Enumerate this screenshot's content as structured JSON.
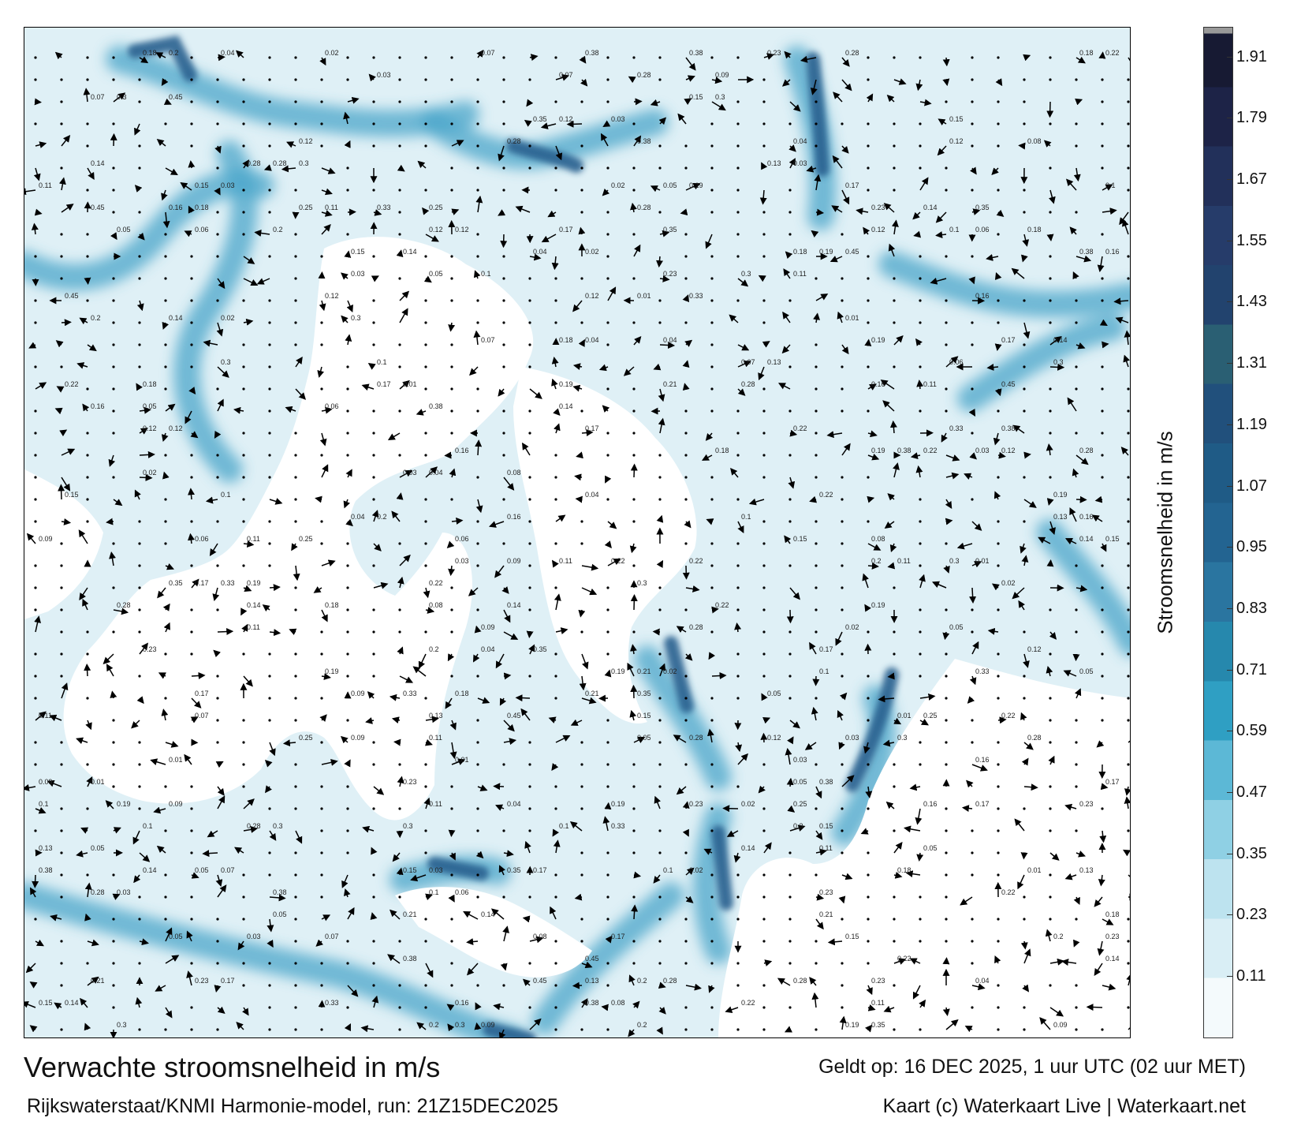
{
  "map": {
    "title": "Verwachte stroomsnelheid in m/s",
    "subtitle": "Rijkswaterstaat/KNMI Harmonie-model, run: 21Z15DEC2025",
    "valid_time": "Geldt op: 16 DEC 2025, 1 uur UTC (02 uur MET)",
    "credit": "Kaart (c) Waterkaart Live | Waterkaart.net",
    "colorbar": {
      "label": "Stroomsnelheid in m/s",
      "ticks": [
        "0.11",
        "0.23",
        "0.35",
        "0.47",
        "0.59",
        "0.71",
        "0.83",
        "0.95",
        "1.07",
        "1.19",
        "1.31",
        "1.43",
        "1.55",
        "1.67",
        "1.79",
        "1.91"
      ],
      "colors": [
        "#f4fafc",
        "#d9eef5",
        "#bde3ef",
        "#8fd0e4",
        "#5cb8d6",
        "#2f9fc3",
        "#2688ad",
        "#2a75a0",
        "#236491",
        "#1f5b86",
        "#21507c",
        "#2a5f73",
        "#22436e",
        "#263c6a",
        "#22305a",
        "#1d2347",
        "#171a33"
      ]
    },
    "water_color": "#dff0f6",
    "land_color": "#ffffff",
    "channel_color": "#4aa5c9",
    "deep_channel_color": "#2a5f8f",
    "sample_labels": [
      "0.12",
      "0.11",
      "0.13",
      "0.14",
      "0.15",
      "0.19",
      "0.21",
      "0.23",
      "0.25",
      "0.28",
      "0.3",
      "0.33",
      "0.35",
      "0.38",
      "0.45",
      "0.06",
      "0.08",
      "0.05",
      "0.03",
      "0.01",
      "0.2",
      "0.22",
      "0.17",
      "0.18",
      "0.16",
      "0.1",
      "0.09",
      "0.07",
      "0.04",
      "0.02"
    ]
  }
}
